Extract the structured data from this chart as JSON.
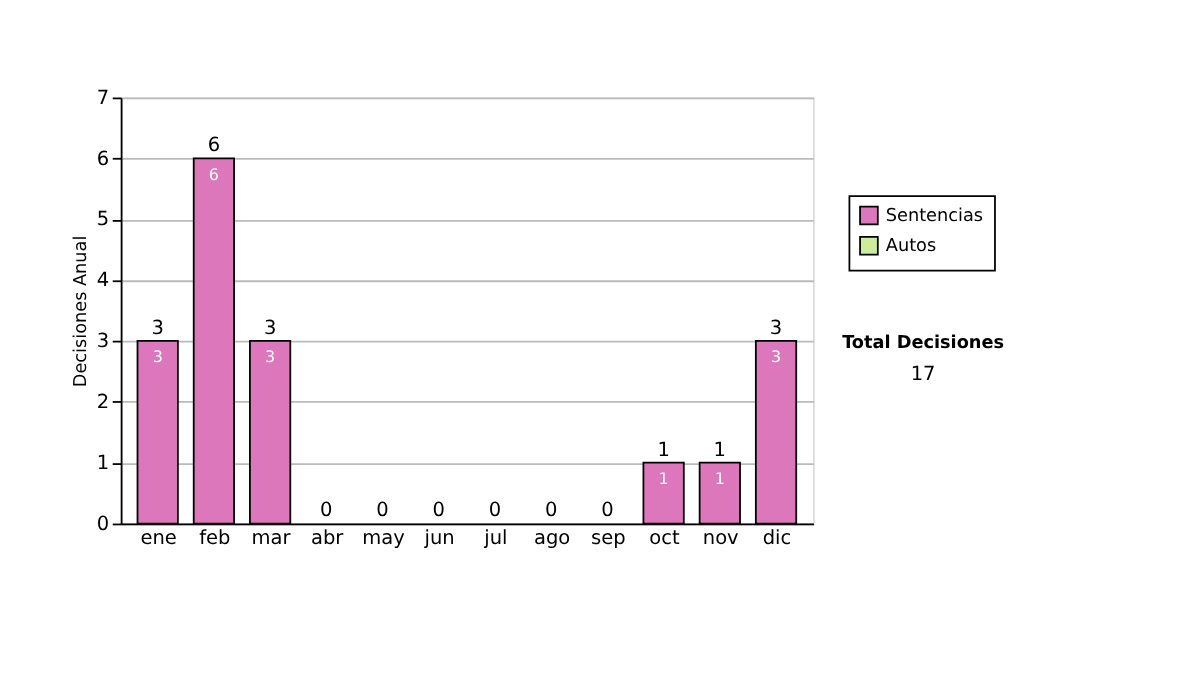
{
  "chart_data": {
    "type": "bar",
    "stacked": true,
    "ylabel": "Decisiones Anual",
    "categories": [
      "ene",
      "feb",
      "mar",
      "abr",
      "may",
      "jun",
      "jul",
      "ago",
      "sep",
      "oct",
      "nov",
      "dic"
    ],
    "series": [
      {
        "name": "Sentencias",
        "color": "#dd77bb",
        "values": [
          3,
          6,
          3,
          0,
          0,
          0,
          0,
          0,
          0,
          1,
          1,
          3
        ],
        "value_labels": [
          "3",
          "6",
          "3",
          null,
          null,
          null,
          null,
          null,
          null,
          "1",
          "1",
          "3"
        ]
      },
      {
        "name": "Autos",
        "color": "#ccee99",
        "values": [
          0,
          0,
          0,
          0,
          0,
          0,
          0,
          0,
          0,
          0,
          0,
          0
        ]
      }
    ],
    "totals": [
      "3",
      "6",
      "3",
      "0",
      "0",
      "0",
      "0",
      "0",
      "0",
      "1",
      "1",
      "3"
    ],
    "ylim": [
      0,
      7
    ],
    "yticks": [
      0,
      1,
      2,
      3,
      4,
      5,
      6,
      7
    ],
    "grid": "y",
    "legend": "right",
    "annotations": [
      "Total Decisiones",
      "17"
    ]
  }
}
